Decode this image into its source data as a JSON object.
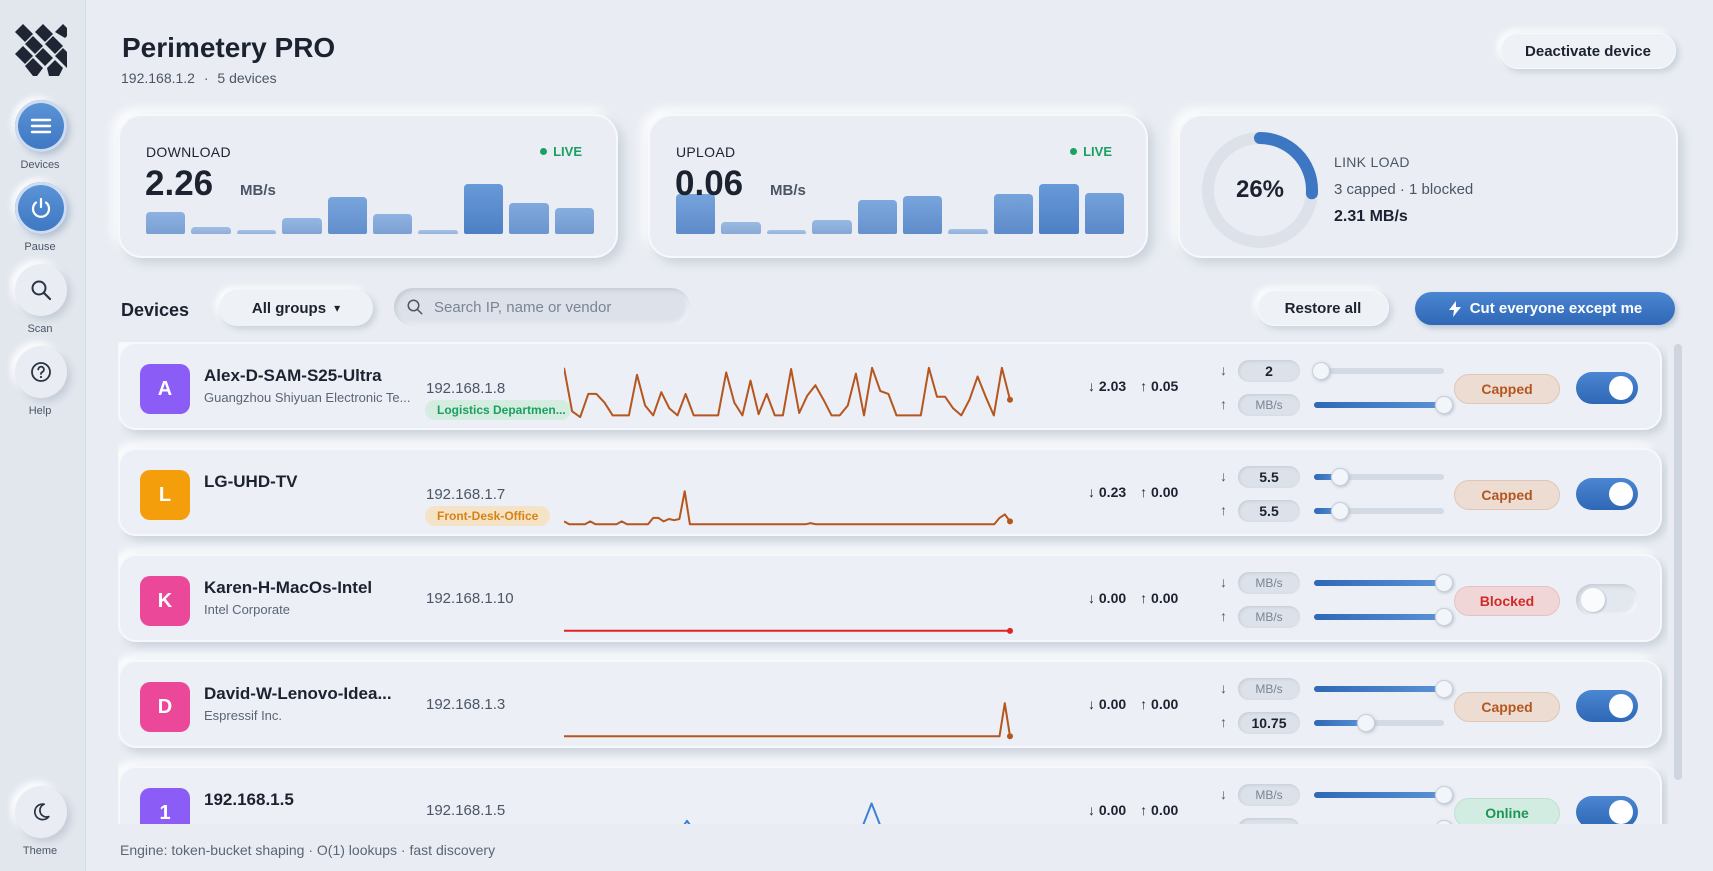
{
  "app": {
    "title": "Perimetery PRO",
    "gateway_ip": "192.168.1.2",
    "device_count": "5 devices",
    "separator": "·",
    "deactivate_label": "Deactivate device"
  },
  "sidebar": {
    "items": [
      {
        "label": "Devices",
        "icon": "menu-icon",
        "active": true
      },
      {
        "label": "Pause",
        "icon": "power-icon",
        "active": true
      },
      {
        "label": "Scan",
        "icon": "search-icon",
        "active": false
      },
      {
        "label": "Help",
        "icon": "help-icon",
        "active": false
      }
    ],
    "theme_label": "Theme"
  },
  "stats": {
    "download": {
      "label": "DOWNLOAD",
      "value": "2.26",
      "unit": "MB/s",
      "live": "LIVE",
      "bars": [
        0.36,
        0.12,
        0.07,
        0.27,
        0.62,
        0.34,
        0.06,
        0.84,
        0.52,
        0.44
      ]
    },
    "upload": {
      "label": "UPLOAD",
      "value": "0.06",
      "unit": "MB/s",
      "live": "LIVE",
      "bars": [
        0.66,
        0.2,
        0.06,
        0.23,
        0.56,
        0.64,
        0.09,
        0.66,
        0.84,
        0.69
      ]
    },
    "link_load": {
      "label": "LINK LOAD",
      "percent_text": "26%",
      "percent": 26,
      "summary": "3 capped · 1 blocked",
      "rate": "2.31 MB/s"
    }
  },
  "toolbar": {
    "section_title": "Devices",
    "group_label": "All groups",
    "dropdown_caret": "▾",
    "search_placeholder": "Search IP, name or vendor",
    "restore_label": "Restore all",
    "cut_label": "Cut everyone except me"
  },
  "devices": [
    {
      "initial": "A",
      "color": "#8b5cf6",
      "name": "Alex-D-SAM-S25-Ultra",
      "vendor": "Guangzhou Shiyuan Electronic Te...",
      "ip": "192.168.1.8",
      "tag": "Logistics Departmen...",
      "tag_color": "#1aa061",
      "tag_bg": "#d5ece0",
      "down": "↓ 2.03",
      "up": "↑ 0.05",
      "down_arrow": "↓",
      "up_arrow": "↑",
      "down_limit": "2",
      "up_limit": "MB/s",
      "down_level": 0.05,
      "up_level": 1.0,
      "status": "Capped",
      "status_type": "capped",
      "enabled": true,
      "line_color": "#b5561f",
      "spark": [
        0.9,
        0.15,
        0.05,
        0.45,
        0.45,
        0.3,
        0.08,
        0.08,
        0.08,
        0.78,
        0.25,
        0.08,
        0.48,
        0.2,
        0.08,
        0.45,
        0.08,
        0.08,
        0.08,
        0.08,
        0.82,
        0.3,
        0.08,
        0.68,
        0.1,
        0.45,
        0.08,
        0.08,
        0.88,
        0.12,
        0.42,
        0.6,
        0.35,
        0.08,
        0.08,
        0.25,
        0.8,
        0.08,
        0.9,
        0.5,
        0.45,
        0.08,
        0.08,
        0.08,
        0.08,
        0.9,
        0.4,
        0.4,
        0.2,
        0.08,
        0.35,
        0.75,
        0.4,
        0.08,
        0.9,
        0.35
      ]
    },
    {
      "initial": "L",
      "color": "#f59e0b",
      "name": "LG-UHD-TV",
      "vendor": "",
      "ip": "192.168.1.7",
      "tag": "Front-Desk-Office",
      "tag_color": "#d98214",
      "tag_bg": "#f5e3c8",
      "down": "↓ 0.23",
      "up": "↑ 0.00",
      "down_arrow": "↓",
      "up_arrow": "↑",
      "down_limit": "5.5",
      "up_limit": "5.5",
      "down_level": 0.2,
      "up_level": 0.2,
      "status": "Capped",
      "status_type": "capped",
      "enabled": true,
      "line_color": "#b5561f",
      "spark": [
        0.08,
        0.03,
        0.03,
        0.03,
        0.03,
        0.08,
        0.03,
        0.03,
        0.03,
        0.03,
        0.03,
        0.08,
        0.03,
        0.03,
        0.03,
        0.03,
        0.03,
        0.14,
        0.14,
        0.08,
        0.12,
        0.1,
        0.12,
        0.6,
        0.03,
        0.03,
        0.03,
        0.03,
        0.03,
        0.03,
        0.03,
        0.03,
        0.03,
        0.03,
        0.03,
        0.03,
        0.03,
        0.03,
        0.03,
        0.03,
        0.03,
        0.03,
        0.03,
        0.03,
        0.03,
        0.03,
        0.03,
        0.05,
        0.03,
        0.03,
        0.03,
        0.03,
        0.03,
        0.03,
        0.03,
        0.03,
        0.03,
        0.03,
        0.03,
        0.03,
        0.03,
        0.03,
        0.03,
        0.03,
        0.03,
        0.03,
        0.03,
        0.03,
        0.03,
        0.03,
        0.03,
        0.03,
        0.03,
        0.03,
        0.03,
        0.03,
        0.03,
        0.03,
        0.03,
        0.03,
        0.03,
        0.03,
        0.03,
        0.14,
        0.2,
        0.08
      ]
    },
    {
      "initial": "K",
      "color": "#ec4899",
      "name": "Karen-H-MacOs-Intel",
      "vendor": "Intel Corporate",
      "ip": "192.168.1.10",
      "tag": "",
      "down": "↓ 0.00",
      "up": "↑ 0.00",
      "down_arrow": "↓",
      "up_arrow": "↑",
      "down_limit": "MB/s",
      "up_limit": "MB/s",
      "down_level": 1.0,
      "up_level": 1.0,
      "status": "Blocked",
      "status_type": "blocked",
      "enabled": false,
      "line_color": "#e02424",
      "spark": [
        0.02,
        0.02,
        0.02,
        0.02,
        0.02,
        0.02,
        0.02,
        0.02,
        0.02,
        0.02
      ]
    },
    {
      "initial": "D",
      "color": "#ec4899",
      "name": "David-W-Lenovo-Idea...",
      "vendor": "Espressif Inc.",
      "ip": "192.168.1.3",
      "tag": "",
      "down": "↓ 0.00",
      "up": "↑ 0.00",
      "down_arrow": "↓",
      "up_arrow": "↑",
      "down_limit": "MB/s",
      "up_limit": "10.75",
      "down_level": 1.0,
      "up_level": 0.4,
      "status": "Capped",
      "status_type": "capped",
      "enabled": true,
      "line_color": "#b5561f",
      "spark": [
        0.03,
        0.03,
        0.03,
        0.03,
        0.03,
        0.03,
        0.03,
        0.03,
        0.03,
        0.03,
        0.03,
        0.03,
        0.03,
        0.03,
        0.03,
        0.03,
        0.03,
        0.03,
        0.03,
        0.03,
        0.03,
        0.03,
        0.03,
        0.03,
        0.03,
        0.03,
        0.03,
        0.03,
        0.03,
        0.03,
        0.03,
        0.03,
        0.03,
        0.03,
        0.03,
        0.03,
        0.03,
        0.03,
        0.03,
        0.03,
        0.03,
        0.03,
        0.03,
        0.03,
        0.03,
        0.03,
        0.03,
        0.03,
        0.03,
        0.03,
        0.03,
        0.03,
        0.03,
        0.03,
        0.03,
        0.03,
        0.03,
        0.03,
        0.03,
        0.03,
        0.03,
        0.03,
        0.03,
        0.03,
        0.03,
        0.03,
        0.03,
        0.03,
        0.03,
        0.03,
        0.03,
        0.03,
        0.03,
        0.03,
        0.03,
        0.03,
        0.03,
        0.03,
        0.03,
        0.03,
        0.03,
        0.03,
        0.03,
        0.03,
        0.6,
        0.03
      ]
    },
    {
      "initial": "1",
      "color": "#8b5cf6",
      "name": "192.168.1.5",
      "vendor": "",
      "ip": "192.168.1.5",
      "tag": "",
      "down": "↓ 0.00",
      "up": "↑ 0.00",
      "down_arrow": "↓",
      "up_arrow": "↑",
      "down_limit": "MB/s",
      "up_limit": "MB/s",
      "down_level": 1.0,
      "up_level": 1.0,
      "status": "Online",
      "status_type": "online",
      "enabled": true,
      "line_color": "#3b82d6",
      "spark": [
        0.02,
        0.02,
        0.02,
        0.02,
        0.02,
        0.02,
        0.02,
        0.02,
        0.4,
        0.02,
        0.02,
        0.02,
        0.02,
        0.02,
        0.02,
        0.02,
        0.02,
        0.02,
        0.02,
        0.02,
        0.7,
        0.02,
        0.02,
        0.02,
        0.02,
        0.02,
        0.02,
        0.02,
        0.02,
        0.02
      ]
    }
  ],
  "footer": {
    "text": "Engine: token-bucket shaping · O(1) lookups · fast discovery"
  },
  "colors": {
    "accent": "#3d76c2",
    "live": "#1aa061"
  }
}
